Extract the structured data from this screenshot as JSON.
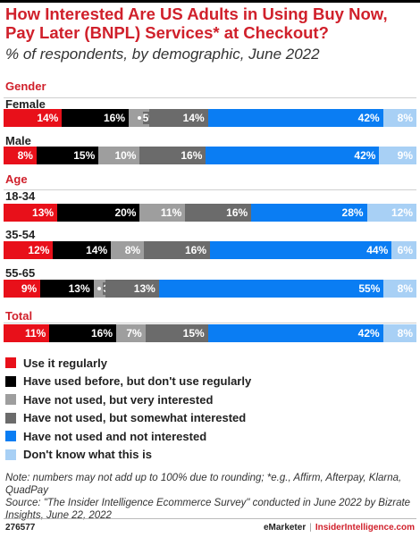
{
  "title": "How Interested Are US Adults in Using Buy Now, Pay Later (BNPL) Services* at Checkout?",
  "subtitle": "% of respondents, by demographic, June 2022",
  "colors": {
    "use_regularly": "#e8101a",
    "used_before": "#000000",
    "very_interested": "#9e9e9e",
    "somewhat_interested": "#6b6b6b",
    "not_interested": "#0a7df3",
    "dont_know": "#a8d0f5"
  },
  "chart_data": {
    "type": "bar",
    "orientation": "horizontal",
    "stacked": true,
    "title": "How Interested Are US Adults in Using Buy Now, Pay Later (BNPL) Services* at Checkout?",
    "subtitle": "% of respondents, by demographic, June 2022",
    "series": [
      {
        "key": "use_regularly",
        "name": "Use it regularly"
      },
      {
        "key": "used_before",
        "name": "Have used before, but don't use regularly"
      },
      {
        "key": "very_interested",
        "name": "Have not used, but very interested"
      },
      {
        "key": "somewhat_interested",
        "name": "Have not used, but somewhat interested"
      },
      {
        "key": "not_interested",
        "name": "Have not used and not interested"
      },
      {
        "key": "dont_know",
        "name": "Don't know what this is"
      }
    ],
    "groups": [
      {
        "name": "Gender",
        "rows": [
          {
            "label": "Female",
            "values": [
              14,
              16,
              5,
              14,
              42,
              8
            ]
          },
          {
            "label": "Male",
            "values": [
              8,
              15,
              10,
              16,
              42,
              9
            ]
          }
        ]
      },
      {
        "name": "Age",
        "rows": [
          {
            "label": "18-34",
            "values": [
              13,
              20,
              11,
              16,
              28,
              12
            ]
          },
          {
            "label": "35-54",
            "values": [
              12,
              14,
              8,
              16,
              44,
              6
            ]
          },
          {
            "label": "55-65",
            "values": [
              9,
              13,
              3,
              13,
              55,
              8
            ]
          }
        ]
      },
      {
        "name": "Total",
        "rows": [
          {
            "label": "",
            "values": [
              11,
              16,
              7,
              15,
              42,
              8
            ]
          }
        ]
      }
    ]
  },
  "note": "Note: numbers may not add up to 100% due to rounding; *e.g., Affirm, Afterpay, Klarna, QuadPay",
  "source": "Source: \"The Insider Intelligence Ecommerce Survey\" conducted in June 2022 by Bizrate Insights, June 22, 2022",
  "footer": {
    "id": "276577",
    "brand1": "eMarketer",
    "separator": "|",
    "brand2": "InsiderIntelligence.com"
  }
}
